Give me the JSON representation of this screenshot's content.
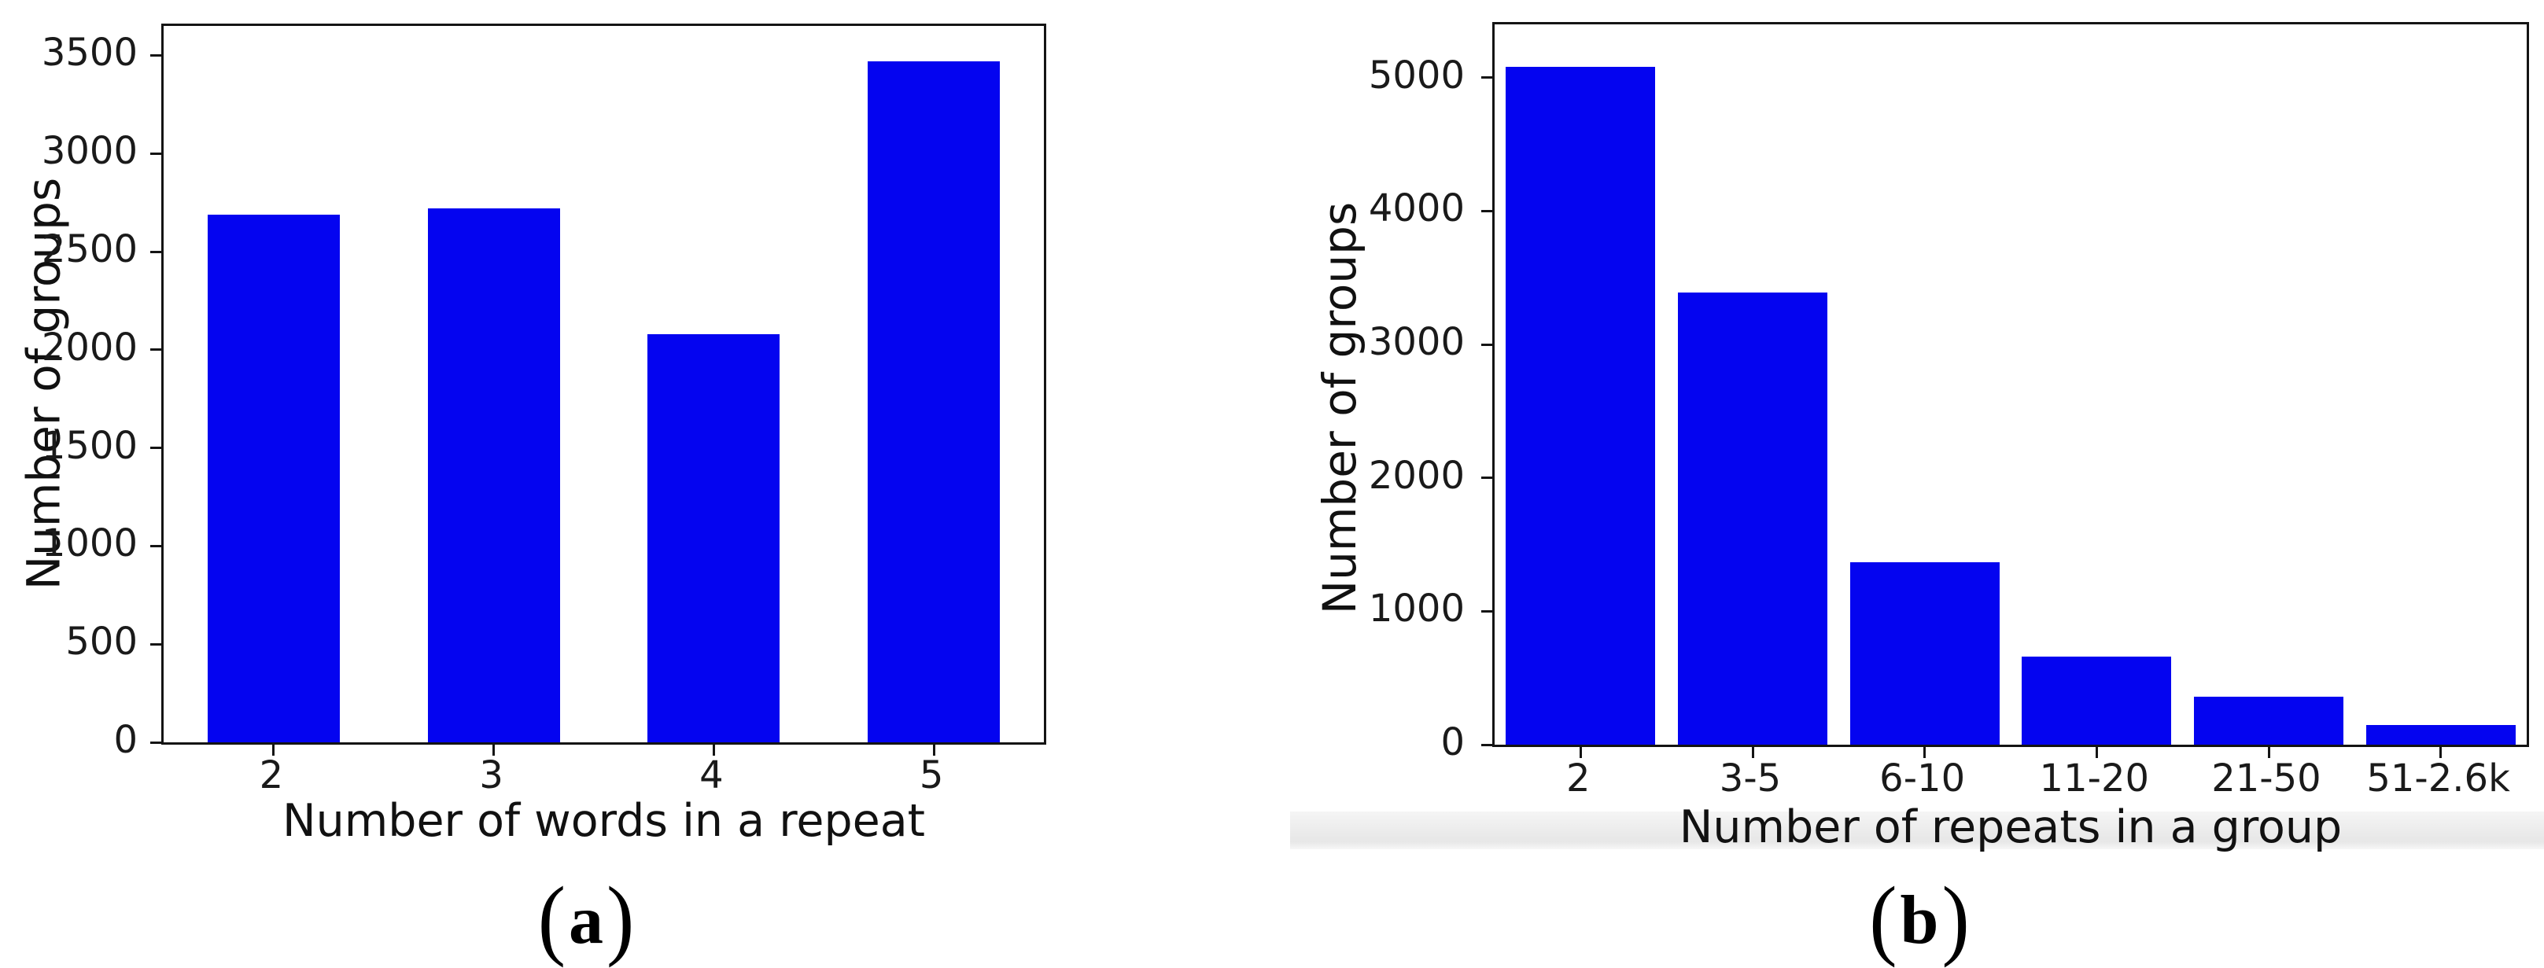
{
  "figure": {
    "captions": {
      "a": {
        "open": "(",
        "letter": "a",
        "close": ")"
      },
      "b": {
        "open": "(",
        "letter": "b",
        "close": ")"
      }
    }
  },
  "chart_data": [
    {
      "type": "bar",
      "panel": "a",
      "categories": [
        "2",
        "3",
        "4",
        "5"
      ],
      "values": [
        2690,
        2720,
        2080,
        3470
      ],
      "xlabel": "Number of words in a repeat",
      "ylabel": "Number of groups",
      "yticks": [
        0,
        500,
        1000,
        1500,
        2000,
        2500,
        3000,
        3500
      ],
      "ylim": [
        0,
        3650
      ],
      "bar_color": "#0404f0",
      "grid": false,
      "legend": null
    },
    {
      "type": "bar",
      "panel": "b",
      "categories": [
        "2",
        "3-5",
        "6-10",
        "11-20",
        "21-50",
        "51-2.6k"
      ],
      "values": [
        5080,
        3390,
        1370,
        660,
        360,
        150
      ],
      "xlabel": "Number of repeats in a group",
      "ylabel": "Number of groups",
      "yticks": [
        0,
        1000,
        2000,
        3000,
        4000,
        5000
      ],
      "ylim": [
        0,
        5400
      ],
      "bar_color": "#0404f0",
      "grid": false,
      "legend": null
    }
  ]
}
